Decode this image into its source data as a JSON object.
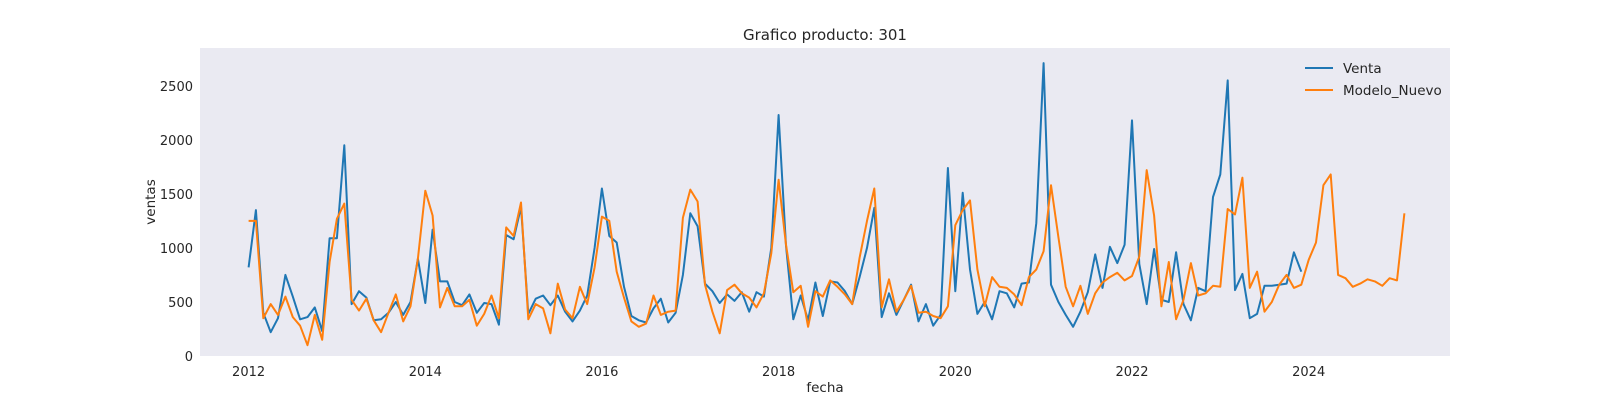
{
  "chart_data": {
    "type": "line",
    "title": "Grafico producto: 301",
    "xlabel": "fecha",
    "ylabel": "ventas",
    "x_unit": "year",
    "xlim": [
      2011.45,
      2025.6
    ],
    "ylim": [
      0,
      2850
    ],
    "x_ticks": [
      2012,
      2014,
      2016,
      2018,
      2020,
      2022,
      2024
    ],
    "y_ticks": [
      0,
      500,
      1000,
      1500,
      2000,
      2500
    ],
    "grid": false,
    "background": "#eaeaf2",
    "legend_position": "top-right",
    "series": [
      {
        "name": "Venta",
        "color": "#1f77b4",
        "start": 2012.0,
        "step": 0.0833333,
        "values": [
          820,
          1350,
          400,
          220,
          350,
          750,
          550,
          340,
          360,
          450,
          230,
          1090,
          1090,
          1950,
          480,
          600,
          540,
          330,
          340,
          400,
          500,
          380,
          500,
          900,
          490,
          1170,
          690,
          690,
          500,
          470,
          570,
          400,
          490,
          480,
          290,
          1120,
          1080,
          1380,
          390,
          530,
          560,
          470,
          560,
          410,
          320,
          420,
          560,
          1000,
          1550,
          1110,
          1050,
          640,
          370,
          330,
          310,
          440,
          530,
          310,
          400,
          750,
          1320,
          1200,
          670,
          600,
          490,
          570,
          510,
          590,
          410,
          590,
          550,
          1000,
          2230,
          1020,
          340,
          560,
          330,
          680,
          370,
          690,
          680,
          600,
          480,
          730,
          1000,
          1370,
          360,
          580,
          380,
          520,
          660,
          320,
          480,
          280,
          380,
          1740,
          600,
          1510,
          800,
          390,
          500,
          340,
          600,
          580,
          450,
          670,
          680,
          1230,
          2710,
          660,
          500,
          380,
          270,
          410,
          590,
          940,
          630,
          1010,
          860,
          1030,
          2180,
          850,
          480,
          990,
          520,
          500,
          960,
          480,
          330,
          630,
          600,
          1470,
          1680,
          2550,
          610,
          760,
          350,
          390,
          650,
          650,
          660,
          670,
          960,
          780
        ]
      },
      {
        "name": "Modelo_Nuevo",
        "color": "#ff7f0e",
        "start": 2012.0,
        "step": 0.0833333,
        "values": [
          1250,
          1250,
          350,
          480,
          380,
          550,
          360,
          280,
          100,
          380,
          150,
          870,
          1270,
          1410,
          520,
          420,
          530,
          330,
          220,
          400,
          570,
          320,
          460,
          900,
          1530,
          1300,
          450,
          630,
          460,
          460,
          520,
          280,
          390,
          560,
          350,
          1190,
          1110,
          1420,
          340,
          480,
          440,
          210,
          670,
          430,
          350,
          640,
          480,
          820,
          1290,
          1250,
          780,
          540,
          320,
          270,
          300,
          560,
          380,
          410,
          420,
          1280,
          1540,
          1430,
          660,
          410,
          210,
          610,
          660,
          580,
          540,
          450,
          580,
          950,
          1630,
          1030,
          590,
          650,
          270,
          600,
          550,
          700,
          640,
          570,
          480,
          910,
          1250,
          1550,
          450,
          710,
          410,
          520,
          650,
          400,
          410,
          370,
          350,
          460,
          1210,
          1350,
          1440,
          800,
          460,
          730,
          640,
          630,
          570,
          470,
          730,
          800,
          970,
          1580,
          1100,
          640,
          460,
          650,
          390,
          580,
          680,
          730,
          770,
          700,
          740,
          920,
          1720,
          1300,
          460,
          870,
          340,
          520,
          860,
          560,
          580,
          650,
          640,
          1360,
          1310,
          1650,
          630,
          780,
          410,
          500,
          660,
          750,
          630,
          660,
          890,
          1050,
          1580,
          1680,
          750,
          720,
          640,
          670,
          710,
          690,
          650,
          720,
          700,
          1320
        ]
      }
    ]
  }
}
